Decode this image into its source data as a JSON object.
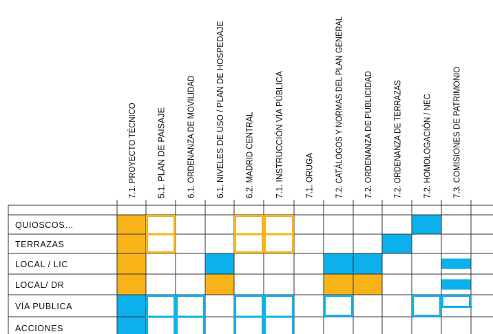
{
  "colors": {
    "orange": "#f7b318",
    "blue": "#0cb0ec",
    "grid": "#333333"
  },
  "columns": [
    "7.1. PROYECTO TÉCNICO",
    "5.1. PLAN DE PAISAJE",
    "6.1. ORDENANZA DE MOVILIDAD",
    "6.1. NIVELES DE USO / PLAN DE HOSPEDAJE",
    "6.2. MADRID CENTRAL",
    "7.1. INSTRUCCIÓN VÍA PÚBLICA",
    "7.1. ORUGA",
    "7.2. CATÁLOGOS Y NORMAS DEL PLAN GENERAL",
    "7.2. ORDENANZA DE PUBLICIDAD",
    "7.2. ORDENANZA DE TERRAZAS",
    "7.2. HOMOLOGACIÓN / NEC",
    "7.3. COMISIONES DE PATRIMONIO"
  ],
  "rows": [
    "QUIOSCOS…",
    "TERRAZAS",
    "LOCAL / LIC",
    "LOCAL/ DR",
    "VÍA PUBLICA",
    "ACCIONES"
  ],
  "cells": [
    {
      "row": 0,
      "row_span": 4,
      "col": 0,
      "style": "orange-fill"
    },
    {
      "row": 4,
      "row_span": 2,
      "col": 0,
      "style": "blue-fill"
    },
    {
      "row": 0,
      "row_span": 2,
      "col": 1,
      "style": "orange-outline"
    },
    {
      "row": 0,
      "row_span": 2,
      "col": 4,
      "style": "orange-outline"
    },
    {
      "row": 0,
      "row_span": 2,
      "col": 5,
      "style": "orange-outline"
    },
    {
      "row": 0,
      "row_span": 1,
      "col": 10,
      "style": "blue-fill"
    },
    {
      "row": 1,
      "row_span": 1,
      "col": 9,
      "style": "blue-fill"
    },
    {
      "row": 2,
      "row_span": 1,
      "col": 3,
      "style": "blue-fill"
    },
    {
      "row": 2,
      "row_span": 1,
      "col": 7,
      "style": "blue-fill"
    },
    {
      "row": 2,
      "row_span": 1,
      "col": 8,
      "style": "blue-fill"
    },
    {
      "row": 2,
      "row_span": 1,
      "col": 11,
      "style": "blue-fill-half"
    },
    {
      "row": 3,
      "row_span": 1,
      "col": 3,
      "style": "orange-fill"
    },
    {
      "row": 3,
      "row_span": 1,
      "col": 7,
      "style": "orange-fill"
    },
    {
      "row": 3,
      "row_span": 1,
      "col": 8,
      "style": "orange-fill"
    },
    {
      "row": 3,
      "row_span": 1,
      "col": 11,
      "style": "blue-fill-half"
    },
    {
      "row": 4,
      "row_span": 2,
      "col": 1,
      "style": "blue-outline"
    },
    {
      "row": 4,
      "row_span": 2,
      "col": 2,
      "style": "blue-outline"
    },
    {
      "row": 4,
      "row_span": 2,
      "col": 4,
      "style": "blue-outline"
    },
    {
      "row": 4,
      "row_span": 2,
      "col": 5,
      "style": "blue-outline"
    },
    {
      "row": 4,
      "row_span": 1,
      "col": 7,
      "style": "blue-outline"
    },
    {
      "row": 4,
      "row_span": 1,
      "col": 10,
      "style": "blue-outline"
    },
    {
      "row": 4,
      "row_span": 1,
      "col": 11,
      "style": "blue-outline-half"
    }
  ]
}
